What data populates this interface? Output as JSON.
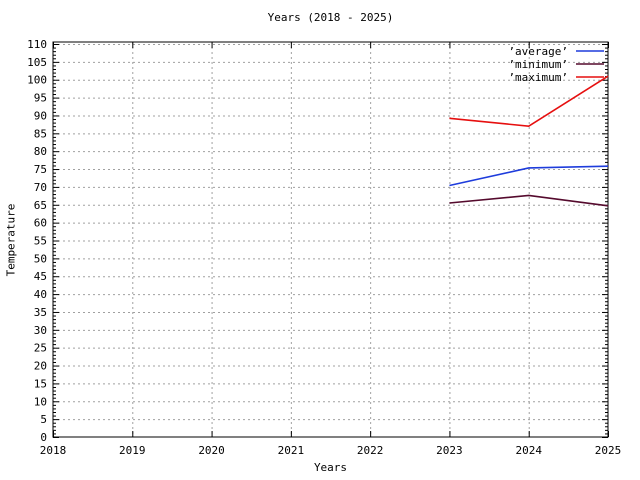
{
  "window": {
    "background": "#ffffff"
  },
  "chart_data": {
    "type": "line",
    "title": "Years (2018 - 2025)",
    "xlabel": "Years",
    "ylabel": "Temperature",
    "xlim": [
      2018,
      2025
    ],
    "ylim": [
      0,
      110
    ],
    "xticks": [
      2018,
      2019,
      2020,
      2021,
      2022,
      2023,
      2024,
      2025
    ],
    "yticks": [
      0,
      5,
      10,
      15,
      20,
      25,
      30,
      35,
      40,
      45,
      50,
      55,
      60,
      65,
      70,
      75,
      80,
      85,
      90,
      95,
      100,
      105,
      110
    ],
    "ytick_step": 5,
    "y_minor_step": 1,
    "grid": true,
    "grid_color": "#a0a0a0",
    "axis_color": "#000000",
    "legend_position": "top-right",
    "x": [
      2023,
      2024,
      2025
    ],
    "series": [
      {
        "name": "’average’",
        "color": "#1e3cdc",
        "values": [
          70.4,
          75.3,
          75.8
        ]
      },
      {
        "name": "’minimum’",
        "color": "#550a2d",
        "values": [
          65.5,
          67.6,
          64.7
        ]
      },
      {
        "name": "’maximum’",
        "color": "#e60f0f",
        "values": [
          89.2,
          87.0,
          101.0
        ]
      }
    ]
  }
}
